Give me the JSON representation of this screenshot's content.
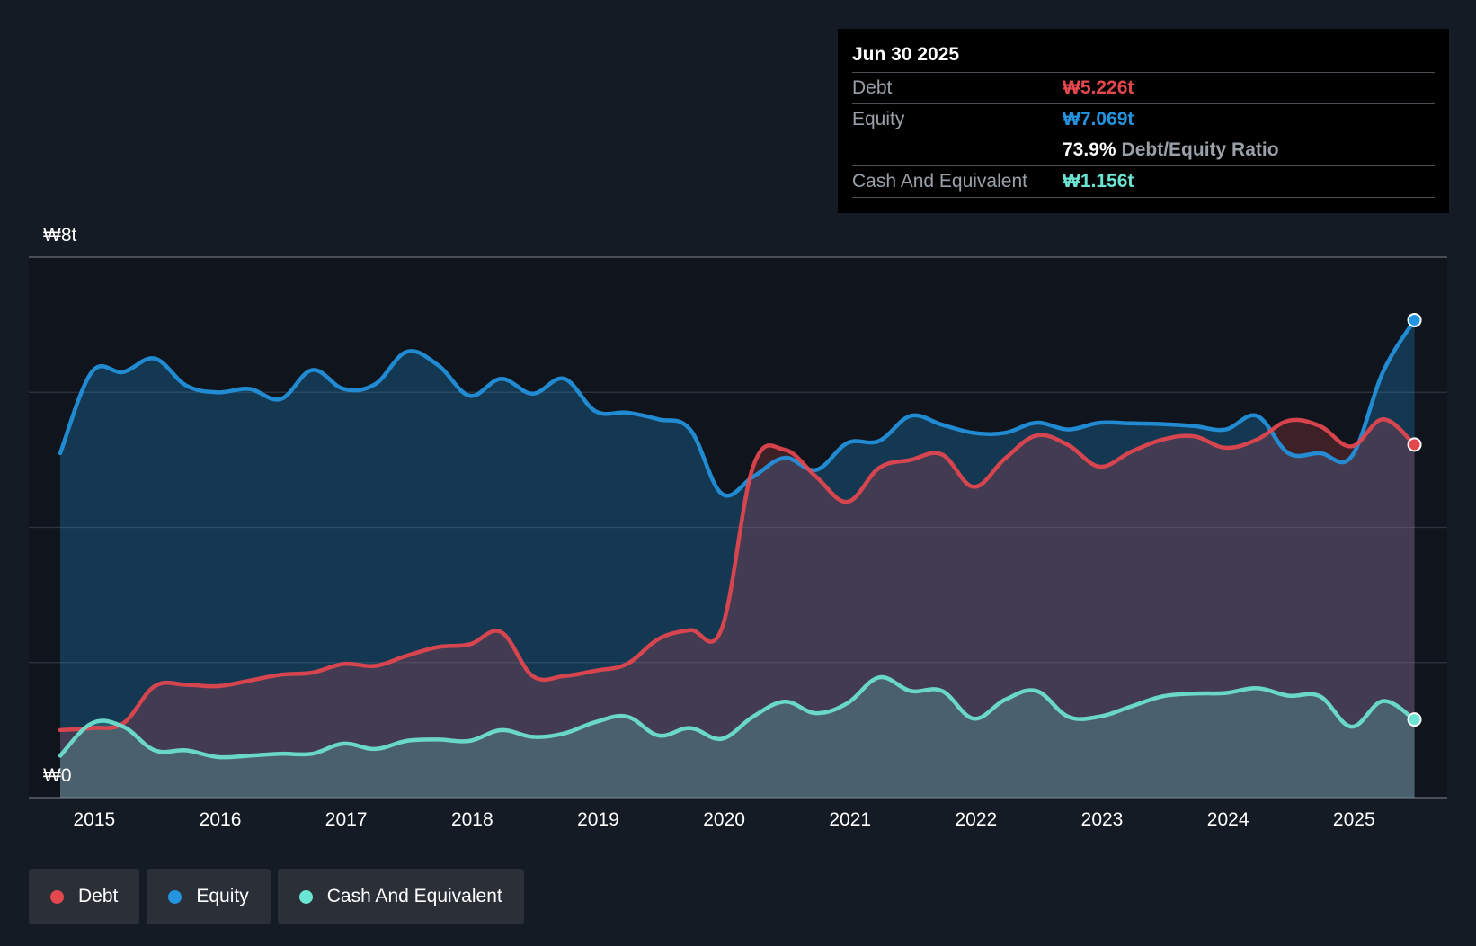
{
  "tooltip": {
    "date": "Jun 30 2025",
    "debt_label": "Debt",
    "debt_value": "₩5.226t",
    "equity_label": "Equity",
    "equity_value": "₩7.069t",
    "ratio_value": "73.9%",
    "ratio_label": "Debt/Equity Ratio",
    "cash_label": "Cash And Equivalent",
    "cash_value": "₩1.156t"
  },
  "legend": {
    "debt": "Debt",
    "equity": "Equity",
    "cash": "Cash And Equivalent"
  },
  "colors": {
    "debt": "#e5474f",
    "equity": "#2394df",
    "cash": "#6ce4d3",
    "background": "#151b24"
  },
  "chart_data": {
    "type": "area",
    "ylim": [
      0,
      8
    ],
    "y_tick_labels": [
      {
        "value": 8,
        "label": "₩8t"
      },
      {
        "value": 0,
        "label": "₩0"
      }
    ],
    "x_tick_labels": [
      "2015",
      "2016",
      "2017",
      "2018",
      "2019",
      "2020",
      "2021",
      "2022",
      "2023",
      "2024",
      "2025"
    ],
    "x_ticks": [
      2015,
      2016,
      2017,
      2018,
      2019,
      2020,
      2021,
      2022,
      2023,
      2024,
      2025
    ],
    "xlim": [
      2014.48,
      2025.74
    ],
    "grid": true,
    "series": [
      {
        "name": "Debt",
        "color": "#e5474f",
        "x": [
          2014.73,
          2014.98,
          2015.23,
          2015.48,
          2015.73,
          2015.98,
          2016.23,
          2016.48,
          2016.73,
          2016.98,
          2017.23,
          2017.48,
          2017.73,
          2017.98,
          2018.23,
          2018.48,
          2018.73,
          2018.98,
          2019.23,
          2019.48,
          2019.73,
          2019.98,
          2020.23,
          2020.48,
          2020.73,
          2020.98,
          2021.23,
          2021.48,
          2021.73,
          2021.98,
          2022.23,
          2022.48,
          2022.73,
          2022.98,
          2023.23,
          2023.48,
          2023.73,
          2023.98,
          2024.23,
          2024.48,
          2024.73,
          2024.98,
          2025.23,
          2025.48
        ],
        "values": [
          1.0,
          1.03,
          1.1,
          1.65,
          1.67,
          1.65,
          1.73,
          1.82,
          1.85,
          1.98,
          1.95,
          2.1,
          2.23,
          2.27,
          2.45,
          1.8,
          1.8,
          1.88,
          1.98,
          2.35,
          2.48,
          2.5,
          4.9,
          5.15,
          4.75,
          4.38,
          4.88,
          5.0,
          5.08,
          4.6,
          5.02,
          5.36,
          5.22,
          4.9,
          5.12,
          5.3,
          5.35,
          5.18,
          5.3,
          5.58,
          5.5,
          5.2,
          5.6,
          5.226
        ]
      },
      {
        "name": "Equity",
        "color": "#2394df",
        "x": [
          2014.73,
          2014.98,
          2015.23,
          2015.48,
          2015.73,
          2015.98,
          2016.23,
          2016.48,
          2016.73,
          2016.98,
          2017.23,
          2017.48,
          2017.73,
          2017.98,
          2018.23,
          2018.48,
          2018.73,
          2018.98,
          2019.23,
          2019.48,
          2019.73,
          2019.98,
          2020.23,
          2020.48,
          2020.73,
          2020.98,
          2021.23,
          2021.48,
          2021.73,
          2021.98,
          2022.23,
          2022.48,
          2022.73,
          2022.98,
          2023.23,
          2023.48,
          2023.73,
          2023.98,
          2024.23,
          2024.48,
          2024.73,
          2024.98,
          2025.23,
          2025.48
        ],
        "values": [
          5.1,
          6.3,
          6.3,
          6.5,
          6.1,
          6.0,
          6.05,
          5.9,
          6.33,
          6.05,
          6.12,
          6.6,
          6.4,
          5.95,
          6.2,
          5.98,
          6.2,
          5.72,
          5.7,
          5.6,
          5.45,
          4.5,
          4.75,
          5.03,
          4.85,
          5.25,
          5.28,
          5.65,
          5.52,
          5.4,
          5.4,
          5.55,
          5.45,
          5.55,
          5.54,
          5.53,
          5.5,
          5.45,
          5.65,
          5.1,
          5.1,
          5.05,
          6.3,
          7.069
        ]
      },
      {
        "name": "Cash And Equivalent",
        "color": "#6ce4d3",
        "x": [
          2014.73,
          2014.98,
          2015.23,
          2015.48,
          2015.73,
          2015.98,
          2016.23,
          2016.48,
          2016.73,
          2016.98,
          2017.23,
          2017.48,
          2017.73,
          2017.98,
          2018.23,
          2018.48,
          2018.73,
          2018.98,
          2019.23,
          2019.48,
          2019.73,
          2019.98,
          2020.23,
          2020.48,
          2020.73,
          2020.98,
          2021.23,
          2021.48,
          2021.73,
          2021.98,
          2022.23,
          2022.48,
          2022.73,
          2022.98,
          2023.23,
          2023.48,
          2023.73,
          2023.98,
          2024.23,
          2024.48,
          2024.73,
          2024.98,
          2025.23,
          2025.48
        ],
        "values": [
          0.62,
          1.1,
          1.05,
          0.7,
          0.7,
          0.6,
          0.62,
          0.65,
          0.65,
          0.8,
          0.72,
          0.84,
          0.86,
          0.84,
          1.0,
          0.9,
          0.95,
          1.12,
          1.2,
          0.92,
          1.03,
          0.87,
          1.2,
          1.42,
          1.25,
          1.4,
          1.78,
          1.58,
          1.58,
          1.17,
          1.45,
          1.58,
          1.2,
          1.2,
          1.35,
          1.5,
          1.54,
          1.55,
          1.62,
          1.51,
          1.5,
          1.05,
          1.43,
          1.156
        ]
      }
    ]
  }
}
